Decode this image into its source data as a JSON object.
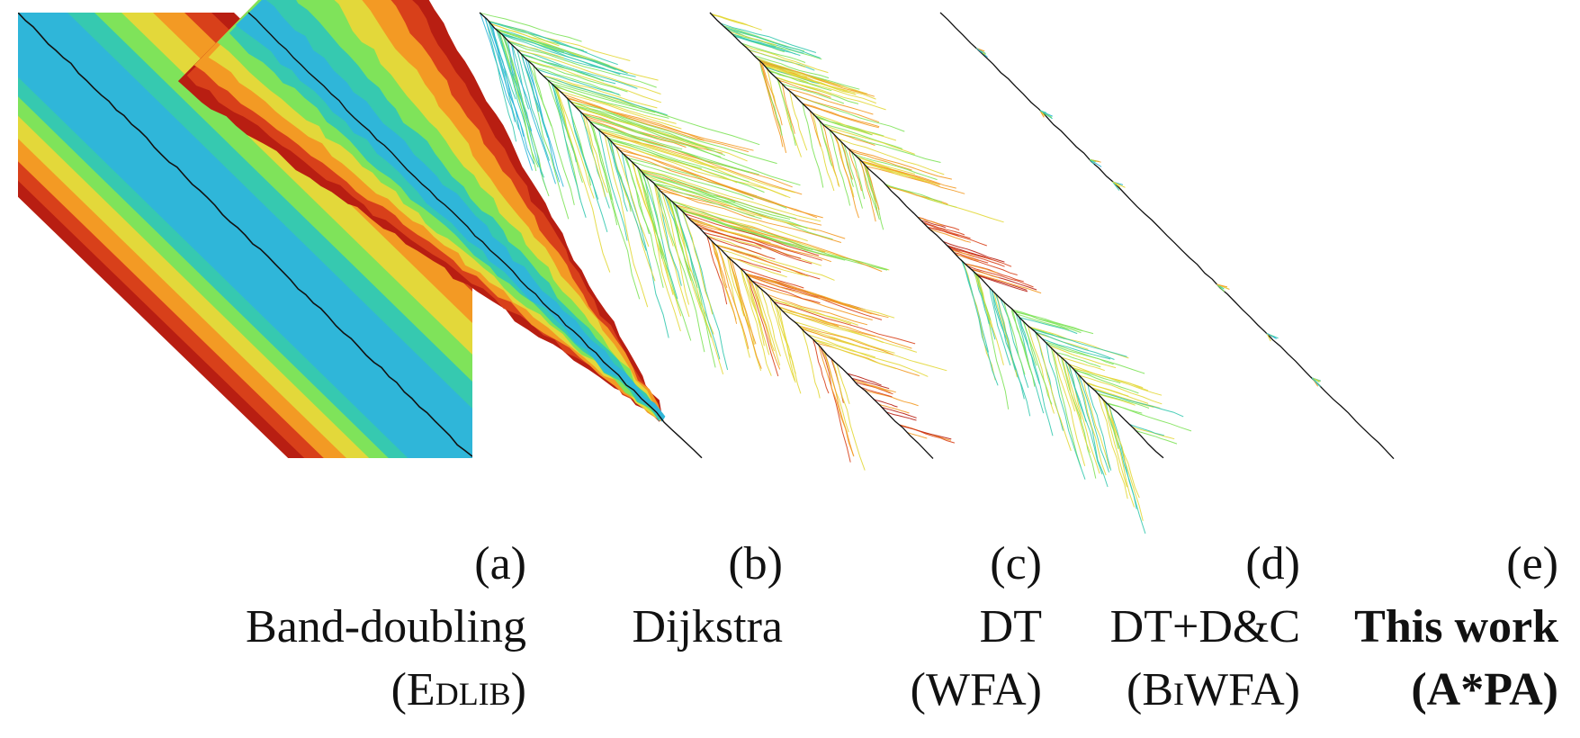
{
  "colors": {
    "cyan": "#2fb6d9",
    "teal": "#36c9b0",
    "green": "#7fe35a",
    "yellow": "#e3d83a",
    "orange": "#f39a24",
    "red": "#d8401a",
    "darkred": "#b81e12",
    "path": "#111111"
  },
  "panels": [
    {
      "letter": "(a)",
      "line1": "Band-doubling",
      "line2": "(Edlib)",
      "style": "band",
      "bold": false
    },
    {
      "letter": "(b)",
      "line1": "Dijkstra",
      "line2": "",
      "style": "wedge",
      "bold": false
    },
    {
      "letter": "(c)",
      "line1": "DT",
      "line2": "(WFA)",
      "style": "tree",
      "bold": false
    },
    {
      "letter": "(d)",
      "line1": "DT+D&C",
      "line2": "(BiWFA)",
      "style": "bitree",
      "bold": false
    },
    {
      "letter": "(e)",
      "line1": "This work",
      "line2": "(A*PA)",
      "style": "line",
      "bold": true
    }
  ]
}
